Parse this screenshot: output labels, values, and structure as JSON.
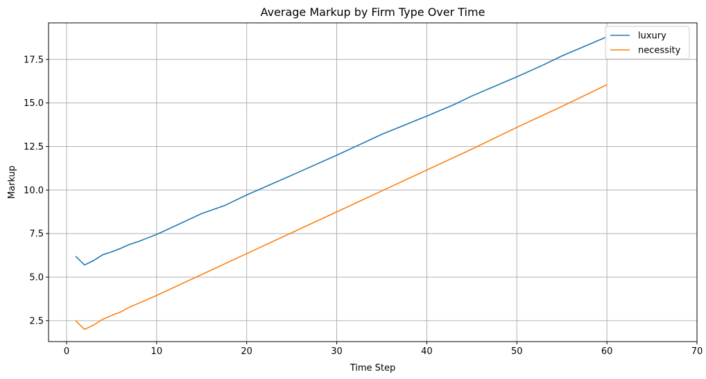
{
  "chart_data": {
    "type": "line",
    "title": "Average Markup by Firm Type Over Time",
    "xlabel": "Time Step",
    "ylabel": "Markup",
    "xlim": [
      -2,
      70
    ],
    "ylim": [
      1.3,
      19.6
    ],
    "xticks": [
      0,
      10,
      20,
      30,
      40,
      50,
      60,
      70
    ],
    "yticks": [
      2.5,
      5.0,
      7.5,
      10.0,
      12.5,
      15.0,
      17.5
    ],
    "ytick_labels": [
      "2.5",
      "5.0",
      "7.5",
      "10.0",
      "12.5",
      "15.0",
      "17.5"
    ],
    "grid": true,
    "legend_position": "top-right",
    "series": [
      {
        "name": "luxury",
        "color": "#1f77b4",
        "points": [
          [
            1,
            6.2
          ],
          [
            2,
            5.7
          ],
          [
            3,
            5.95
          ],
          [
            4,
            6.28
          ],
          [
            5,
            6.45
          ],
          [
            6,
            6.65
          ],
          [
            7,
            6.88
          ],
          [
            8,
            7.05
          ],
          [
            9,
            7.25
          ],
          [
            10,
            7.45
          ],
          [
            15,
            8.65
          ],
          [
            17.5,
            9.1
          ],
          [
            20,
            9.72
          ],
          [
            25,
            10.85
          ],
          [
            30,
            12.0
          ],
          [
            35,
            13.2
          ],
          [
            40,
            14.25
          ],
          [
            43,
            14.9
          ],
          [
            45,
            15.4
          ],
          [
            50,
            16.5
          ],
          [
            53,
            17.2
          ],
          [
            55,
            17.7
          ],
          [
            60,
            18.8
          ]
        ]
      },
      {
        "name": "necessity",
        "color": "#ff7f0e",
        "points": [
          [
            1,
            2.5
          ],
          [
            2,
            2.0
          ],
          [
            3,
            2.25
          ],
          [
            4,
            2.58
          ],
          [
            5,
            2.8
          ],
          [
            6,
            3.0
          ],
          [
            7,
            3.28
          ],
          [
            8,
            3.5
          ],
          [
            9,
            3.72
          ],
          [
            10,
            3.95
          ],
          [
            15,
            5.15
          ],
          [
            20,
            6.35
          ],
          [
            25,
            7.55
          ],
          [
            30,
            8.75
          ],
          [
            35,
            9.95
          ],
          [
            40,
            11.15
          ],
          [
            45,
            12.35
          ],
          [
            50,
            13.6
          ],
          [
            55,
            14.8
          ],
          [
            60,
            16.05
          ]
        ]
      }
    ]
  }
}
